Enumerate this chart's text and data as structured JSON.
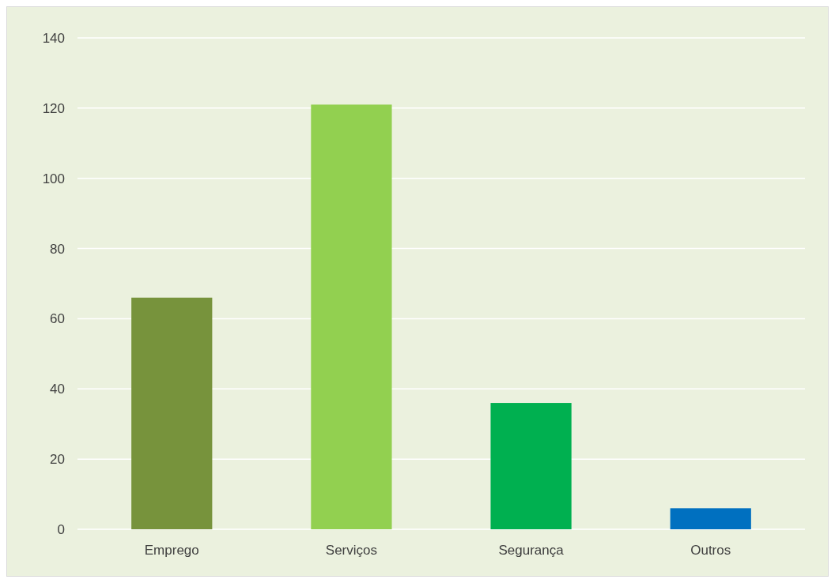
{
  "chart_data": {
    "type": "bar",
    "categories": [
      "Emprego",
      "Serviços",
      "Segurança",
      "Outros"
    ],
    "values": [
      66,
      121,
      36,
      6
    ],
    "colors": [
      "#77933c",
      "#92d050",
      "#00b050",
      "#0070c0"
    ],
    "ylim": [
      0,
      140
    ],
    "yticks": [
      0,
      20,
      40,
      60,
      80,
      100,
      120,
      140
    ],
    "grid": "y"
  }
}
